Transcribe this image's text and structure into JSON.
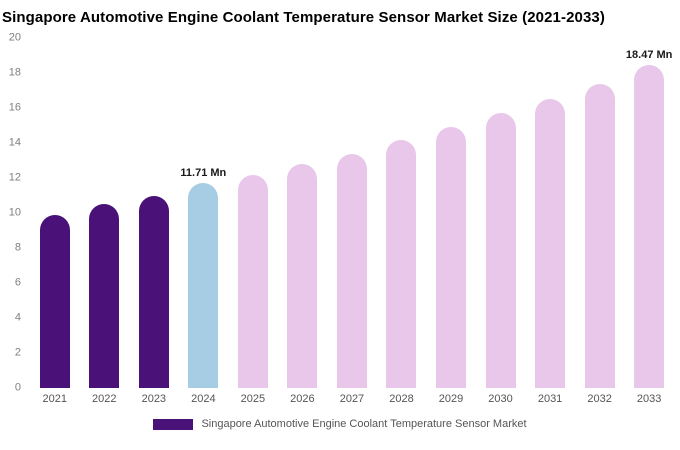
{
  "title": "Singapore Automotive Engine Coolant Temperature Sensor Market Size (2021-2033)",
  "legend": {
    "label": "Singapore Automotive Engine Coolant Temperature Sensor Market",
    "swatch_color": "#4a1278"
  },
  "colors": {
    "historical": "#4a1278",
    "current_year": "#a6cde3",
    "forecast": "#e9c7ea"
  },
  "chart_data": {
    "type": "bar",
    "title": "Singapore Automotive Engine Coolant Temperature Sensor Market Size (2021-2033)",
    "xlabel": "",
    "ylabel": "",
    "ylim": [
      0,
      20
    ],
    "yticks": [
      0,
      2,
      4,
      6,
      8,
      10,
      12,
      14,
      16,
      18,
      20
    ],
    "grid": false,
    "legend_position": "bottom",
    "unit": "Mn",
    "categories": [
      "2021",
      "2022",
      "2023",
      "2024",
      "2025",
      "2026",
      "2027",
      "2028",
      "2029",
      "2030",
      "2031",
      "2032",
      "2033"
    ],
    "values": [
      9.9,
      10.5,
      11.0,
      11.71,
      12.2,
      12.8,
      13.4,
      14.2,
      14.9,
      15.7,
      16.5,
      17.4,
      18.47
    ],
    "bar_colors": [
      "#4a1278",
      "#4a1278",
      "#4a1278",
      "#a6cde3",
      "#e9c7ea",
      "#e9c7ea",
      "#e9c7ea",
      "#e9c7ea",
      "#e9c7ea",
      "#e9c7ea",
      "#e9c7ea",
      "#e9c7ea",
      "#e9c7ea"
    ],
    "annotations": [
      "",
      "",
      "",
      "11.71 Mn",
      "",
      "",
      "",
      "",
      "",
      "",
      "",
      "",
      "18.47 Mn"
    ]
  }
}
